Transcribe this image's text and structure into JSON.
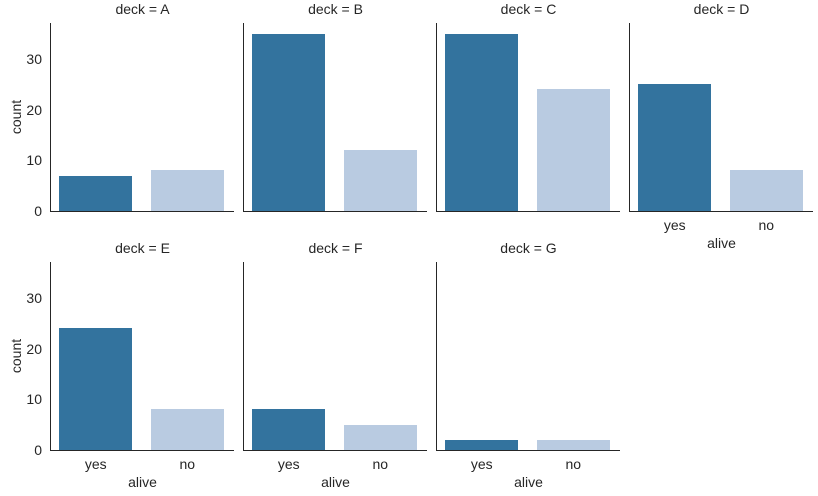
{
  "chart_data": {
    "type": "bar",
    "description": "Faceted countplot of survival (alive yes/no) per ship deck",
    "facet_variable": "deck",
    "categories": [
      "yes",
      "no"
    ],
    "xlabel": "alive",
    "ylabel": "count",
    "yticks": [
      0,
      10,
      20,
      30
    ],
    "ylim": [
      0,
      37.1
    ],
    "grid": false,
    "legend": "none",
    "bar_colors": [
      "#33739E",
      "#B9CBE1"
    ],
    "facets": [
      {
        "title": "deck = A",
        "values": [
          7,
          8
        ]
      },
      {
        "title": "deck = B",
        "values": [
          35,
          12
        ]
      },
      {
        "title": "deck = C",
        "values": [
          35,
          24
        ]
      },
      {
        "title": "deck = D",
        "values": [
          25,
          8
        ]
      },
      {
        "title": "deck = E",
        "values": [
          24,
          8
        ]
      },
      {
        "title": "deck = F",
        "values": [
          8,
          5
        ]
      },
      {
        "title": "deck = G",
        "values": [
          2,
          2
        ]
      }
    ]
  },
  "colors": {
    "background": "#ffffff",
    "spine": "#262626",
    "text": "#262626"
  }
}
